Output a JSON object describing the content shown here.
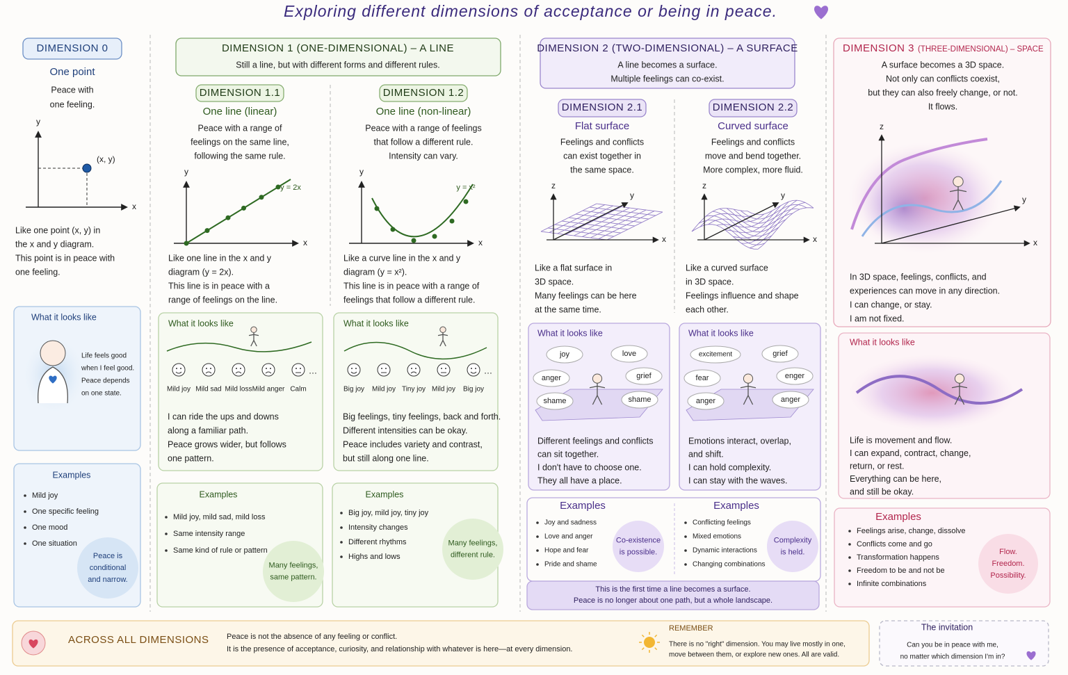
{
  "title": "Exploring different dimensions of acceptance or being in peace.",
  "d0": {
    "header": "DIMENSION 0",
    "subtitle": "One point",
    "text": [
      "Peace with",
      "one feeling."
    ],
    "axis": {
      "x": "x",
      "y": "y",
      "point": "(x, y)"
    },
    "caption": [
      "Like one point (x, y) in",
      "the x and y diagram.",
      "This point is in peace with",
      "one feeling."
    ],
    "looks": {
      "title": "What it looks like",
      "text": [
        "Life feels good",
        "when I feel good.",
        "Peace depends",
        "on one state."
      ]
    },
    "examples": {
      "title": "Examples",
      "items": [
        "Mild joy",
        "One specific feeling",
        "One mood",
        "One situation"
      ],
      "note": [
        "Peace is",
        "conditional",
        "and narrow."
      ]
    }
  },
  "d1": {
    "header": "DIMENSION 1 (ONE-DIMENSIONAL) – A LINE",
    "text": [
      "Still a line, but with different forms and different rules."
    ],
    "sub": [
      {
        "header": "DIMENSION 1.1",
        "subtitle": "One line (linear)",
        "text": [
          "Peace with a range of",
          "feelings on the same line,",
          "following the same rule."
        ],
        "axis": {
          "x": "x",
          "y": "y",
          "eq": "y = 2x"
        },
        "caption": [
          "Like one line in the x and y",
          "diagram (y = 2x).",
          "This line is in peace with a",
          "range of feelings on the line."
        ],
        "looks": {
          "title": "What it looks like",
          "labels": [
            "Mild joy",
            "Mild sad",
            "Mild loss",
            "Mild anger",
            "Calm"
          ],
          "more": "…",
          "text": [
            "I can ride the ups and downs",
            "along a familiar path.",
            "Peace grows wider, but follows",
            "one pattern."
          ]
        },
        "examples": {
          "title": "Examples",
          "items": [
            "Mild joy, mild sad, mild loss",
            "Same intensity range",
            "Same kind of rule or pattern"
          ],
          "note": [
            "Many feelings,",
            "same pattern."
          ]
        }
      },
      {
        "header": "DIMENSION 1.2",
        "subtitle": "One line (non-linear)",
        "text": [
          "Peace with a range of feelings",
          "that follow a different rule.",
          "Intensity can vary."
        ],
        "axis": {
          "x": "x",
          "y": "y",
          "eq": "y = x²"
        },
        "caption": [
          "Like a curve line in the x and y",
          "diagram (y = x²).",
          "This line is in peace with a range of",
          "feelings that follow a different rule."
        ],
        "looks": {
          "title": "What it looks like",
          "labels": [
            "Big joy",
            "Mild joy",
            "Tiny joy",
            "Mild joy",
            "Big joy"
          ],
          "more": "…",
          "text": [
            "Big feelings, tiny feelings, back and forth.",
            "Different intensities can be okay.",
            "Peace includes variety and contrast,",
            "but still along one line."
          ]
        },
        "examples": {
          "title": "Examples",
          "items": [
            "Big joy, mild joy, tiny joy",
            "Intensity changes",
            "Different rhythms",
            "Highs and lows"
          ],
          "note": [
            "Many feelings,",
            "different rule."
          ]
        }
      }
    ]
  },
  "d2": {
    "header": "DIMENSION 2 (TWO-DIMENSIONAL) – A SURFACE",
    "text": [
      "A line becomes a surface.",
      "Multiple feelings can co-exist."
    ],
    "sub": [
      {
        "header": "DIMENSION 2.1",
        "subtitle": "Flat surface",
        "text": [
          "Feelings and conflicts",
          "can exist together in",
          "the same space."
        ],
        "axis": {
          "z": "z",
          "y": "y",
          "x": "x"
        },
        "caption": [
          "Like a flat surface in",
          "3D space.",
          "Many feelings can be here",
          "at the same time."
        ],
        "looks": {
          "title": "What it looks like",
          "words": [
            "joy",
            "love",
            "anger",
            "grief",
            "shame",
            "shame"
          ],
          "text": [
            "Different feelings and conflicts",
            "can sit together.",
            "I don't have to choose one.",
            "They all have a place."
          ]
        },
        "examples": {
          "title": "Examples",
          "items": [
            "Joy and sadness",
            "Love and anger",
            "Hope and fear",
            "Pride and shame"
          ],
          "note": [
            "Co-existence",
            "is possible."
          ]
        }
      },
      {
        "header": "DIMENSION 2.2",
        "subtitle": "Curved surface",
        "text": [
          "Feelings and conflicts",
          "move and bend together.",
          "More complex, more fluid."
        ],
        "axis": {
          "z": "z",
          "y": "y",
          "x": "x"
        },
        "caption": [
          "Like a curved surface",
          "in 3D space.",
          "Feelings influence and shape",
          "each other."
        ],
        "looks": {
          "title": "What it looks like",
          "words": [
            "excitement",
            "grief",
            "fear",
            "enger",
            "anger",
            "anger"
          ],
          "text": [
            "Emotions interact, overlap,",
            "and shift.",
            "I can hold complexity.",
            "I can stay with the waves."
          ]
        },
        "examples": {
          "title": "Examples",
          "items": [
            "Conflicting feelings",
            "Mixed emotions",
            "Dynamic interactions",
            "Changing combinations"
          ],
          "note": [
            "Complexity",
            "is held."
          ]
        }
      }
    ],
    "footer": [
      "This is the first time a line becomes a surface.",
      "Peace is no longer about one path, but a whole landscape."
    ]
  },
  "d3": {
    "header": "DIMENSION 3",
    "header_note": "(THREE-DIMENSIONAL) – SPACE",
    "text": [
      "A surface becomes a 3D space.",
      "Not only can conflicts coexist,",
      "but they can also freely change, or not.",
      "It flows."
    ],
    "axis": {
      "z": "z",
      "y": "y",
      "x": "x"
    },
    "caption": [
      "In 3D space, feelings, conflicts, and",
      "experiences can move in any direction.",
      "I can change, or stay.",
      "I am not fixed."
    ],
    "looks": {
      "title": "What it looks like",
      "text": [
        "Life is movement and flow.",
        "I can expand, contract, change,",
        "return, or rest.",
        "Everything can be here,",
        "and still be okay."
      ]
    },
    "examples": {
      "title": "Examples",
      "items": [
        "Feelings arise, change, dissolve",
        "Conflicts come and go",
        "Transformation happens",
        "Freedom to be and not be",
        "Infinite combinations"
      ],
      "note": [
        "Flow.",
        "Freedom.",
        "Possibility."
      ]
    }
  },
  "bottom": {
    "across": {
      "title": "ACROSS ALL DIMENSIONS",
      "text": [
        "Peace is not the absence of any feeling or conflict.",
        "It is the presence of acceptance, curiosity, and relationship with whatever is here—at every dimension."
      ]
    },
    "remember": {
      "title": "REMEMBER",
      "text": [
        "There is no \"right\" dimension. You may live mostly in one,",
        "move between them, or explore new ones. All are valid."
      ]
    },
    "invitation": {
      "title": "The invitation",
      "text": [
        "Can you be in peace with me,",
        "no matter which dimension I'm in?"
      ]
    }
  }
}
